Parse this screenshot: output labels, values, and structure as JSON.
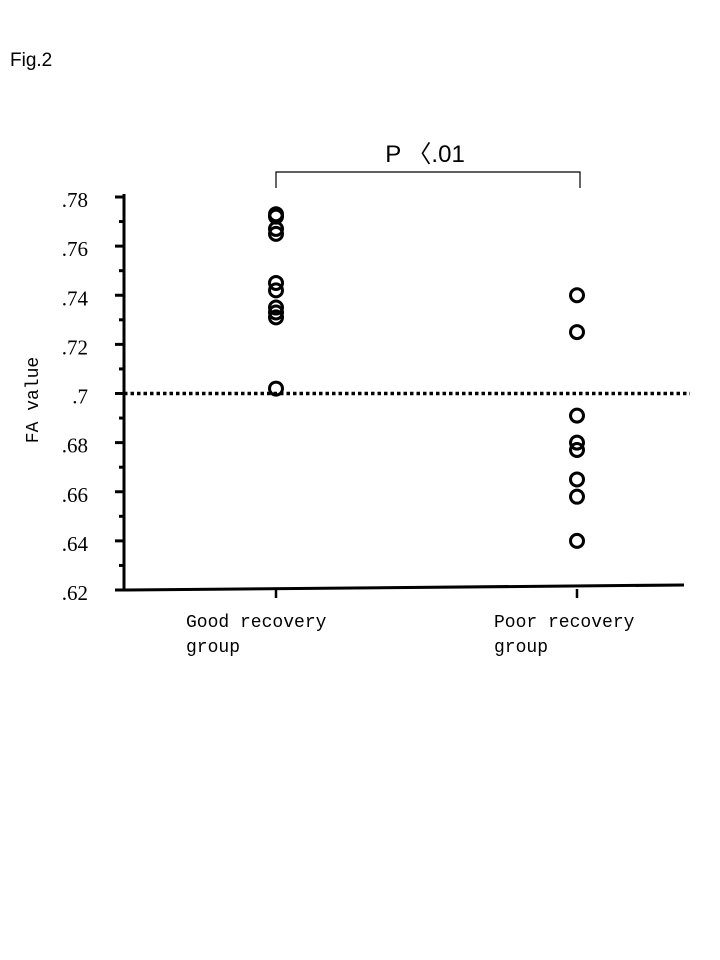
{
  "figure": {
    "label": "Fig.2"
  },
  "chart_data": {
    "type": "scatter",
    "ylabel": "FA value",
    "ylim": [
      0.62,
      0.78
    ],
    "yticks": [
      {
        "value": 0.78,
        "label": ".78"
      },
      {
        "value": 0.76,
        "label": ".76"
      },
      {
        "value": 0.74,
        "label": ".74"
      },
      {
        "value": 0.72,
        "label": ".72"
      },
      {
        "value": 0.7,
        "label": ".7"
      },
      {
        "value": 0.68,
        "label": ".68"
      },
      {
        "value": 0.66,
        "label": ".66"
      },
      {
        "value": 0.64,
        "label": ".64"
      },
      {
        "value": 0.62,
        "label": ".62"
      }
    ],
    "categories": [
      {
        "lines": [
          "Good recovery",
          "group"
        ]
      },
      {
        "lines": [
          "Poor recovery",
          "group"
        ]
      }
    ],
    "series": [
      {
        "values": [
          0.773,
          0.772,
          0.767,
          0.765,
          0.745,
          0.742,
          0.735,
          0.733,
          0.731,
          0.702
        ]
      },
      {
        "values": [
          0.74,
          0.725,
          0.691,
          0.68,
          0.677,
          0.665,
          0.658,
          0.64
        ]
      }
    ],
    "reference_line": {
      "value": 0.7,
      "style": "dotted"
    },
    "significance": {
      "text": "P 〈.01",
      "between": [
        0,
        1
      ]
    },
    "grid": false,
    "marker": "open-circle"
  }
}
